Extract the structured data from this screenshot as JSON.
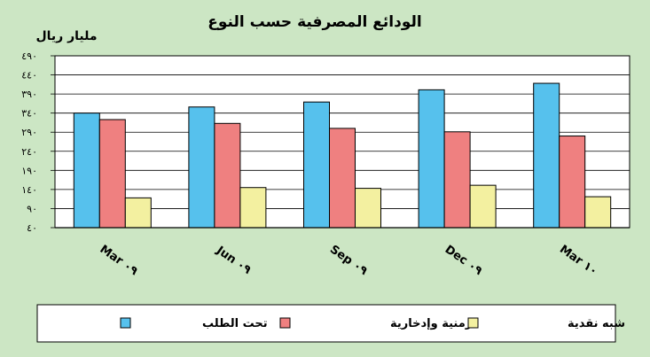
{
  "chart_data": {
    "type": "bar",
    "title": "الودائع المصرفية حسب النوع",
    "ylabel": "مليار ريال",
    "xlabel": "",
    "ylim": [
      40,
      490
    ],
    "yticks": [
      "٤٠",
      "٩٠",
      "١٤٠",
      "١٩٠",
      "٢٤٠",
      "٢٩٠",
      "٣٤٠",
      "٣٩٠",
      "٤٤٠",
      "٤٩٠"
    ],
    "ytick_values": [
      40,
      90,
      140,
      190,
      240,
      290,
      340,
      390,
      440,
      490
    ],
    "baseline": 40,
    "categories": [
      "Mar ٠٩",
      "Jun ٠٩",
      "Sep ٠٩",
      "Dec ٠٩",
      "Mar ١٠"
    ],
    "series": [
      {
        "name": "تحت الطلب",
        "color": "#56c1ed",
        "values": [
          340,
          356,
          369,
          401,
          418
        ]
      },
      {
        "name": "زمنية وإدخارية",
        "color": "#ef8080",
        "values": [
          323,
          313,
          300,
          291,
          280
        ]
      },
      {
        "name": "شبه نقدية",
        "color": "#f3f0a0",
        "values": [
          118,
          145,
          143,
          151,
          121
        ]
      }
    ],
    "grid": true,
    "legend_position": "bottom"
  }
}
